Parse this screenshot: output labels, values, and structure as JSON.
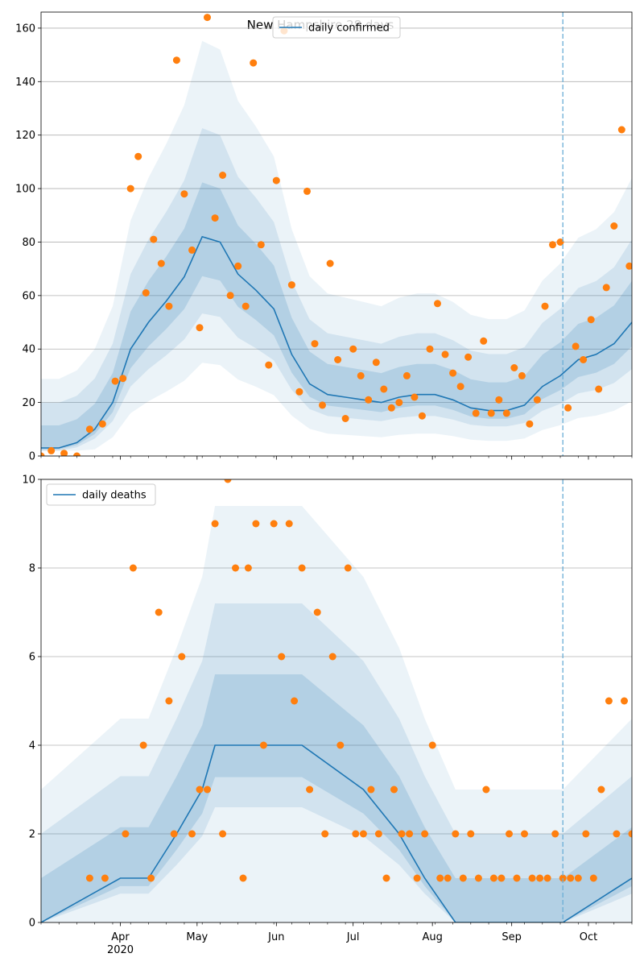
{
  "title": "New Hampshire 28 days",
  "colors": {
    "line": "#1f77b4",
    "points": "#ff7f0e",
    "band": "#1f77b4",
    "grid": "#b0b0b0",
    "vline": "#6baed6"
  },
  "x_ticks": {
    "labels": [
      "Apr",
      "May",
      "Jun",
      "Jul",
      "Aug",
      "Sep",
      "Oct"
    ],
    "year_label": "2020"
  },
  "chart_data": [
    {
      "type": "line",
      "title": "New Hampshire 28 days",
      "legend": "daily confirmed",
      "legend_position": "top-center",
      "grid": "y",
      "xlim": [
        "2020-03-01",
        "2020-10-18"
      ],
      "ylim": [
        0,
        166
      ],
      "yticks": [
        0,
        20,
        40,
        60,
        80,
        100,
        120,
        140,
        160
      ],
      "forecast_start": "2020-09-21",
      "series": [
        {
          "name": "daily confirmed",
          "x": [
            "2020-03-01",
            "2020-03-08",
            "2020-03-15",
            "2020-03-22",
            "2020-03-29",
            "2020-04-05",
            "2020-04-12",
            "2020-04-19",
            "2020-04-26",
            "2020-05-03",
            "2020-05-10",
            "2020-05-17",
            "2020-05-24",
            "2020-05-31",
            "2020-06-07",
            "2020-06-14",
            "2020-06-21",
            "2020-06-28",
            "2020-07-05",
            "2020-07-12",
            "2020-07-19",
            "2020-07-26",
            "2020-08-02",
            "2020-08-09",
            "2020-08-16",
            "2020-08-23",
            "2020-08-30",
            "2020-09-06",
            "2020-09-13",
            "2020-09-20",
            "2020-09-27",
            "2020-10-04",
            "2020-10-11",
            "2020-10-18"
          ],
          "y": [
            3,
            3,
            5,
            10,
            20,
            40,
            50,
            58,
            67,
            82,
            80,
            68,
            62,
            55,
            38,
            27,
            23,
            22,
            21,
            20,
            22,
            23,
            23,
            21,
            18,
            17,
            17,
            19,
            26,
            30,
            36,
            38,
            42,
            50
          ]
        },
        {
          "name": "",
          "kind": "observed points",
          "x": [
            "2020-03-01",
            "2020-03-05",
            "2020-03-10",
            "2020-03-15",
            "2020-03-20",
            "2020-03-25",
            "2020-03-30",
            "2020-04-02",
            "2020-04-05",
            "2020-04-08",
            "2020-04-11",
            "2020-04-14",
            "2020-04-17",
            "2020-04-20",
            "2020-04-23",
            "2020-04-26",
            "2020-04-29",
            "2020-05-02",
            "2020-05-05",
            "2020-05-08",
            "2020-05-11",
            "2020-05-14",
            "2020-05-17",
            "2020-05-20",
            "2020-05-23",
            "2020-05-26",
            "2020-05-29",
            "2020-06-01",
            "2020-06-04",
            "2020-06-07",
            "2020-06-10",
            "2020-06-13",
            "2020-06-16",
            "2020-06-19",
            "2020-06-22",
            "2020-06-25",
            "2020-06-28",
            "2020-07-01",
            "2020-07-04",
            "2020-07-07",
            "2020-07-10",
            "2020-07-13",
            "2020-07-16",
            "2020-07-19",
            "2020-07-22",
            "2020-07-25",
            "2020-07-28",
            "2020-07-31",
            "2020-08-03",
            "2020-08-06",
            "2020-08-09",
            "2020-08-12",
            "2020-08-15",
            "2020-08-18",
            "2020-08-21",
            "2020-08-24",
            "2020-08-27",
            "2020-08-30",
            "2020-09-02",
            "2020-09-05",
            "2020-09-08",
            "2020-09-11",
            "2020-09-14",
            "2020-09-17",
            "2020-09-20",
            "2020-09-23",
            "2020-09-26",
            "2020-09-29",
            "2020-10-02",
            "2020-10-05",
            "2020-10-08",
            "2020-10-11",
            "2020-10-14",
            "2020-10-17"
          ],
          "y": [
            0,
            2,
            1,
            0,
            10,
            12,
            28,
            29,
            100,
            112,
            61,
            81,
            72,
            56,
            148,
            98,
            77,
            48,
            164,
            89,
            105,
            60,
            71,
            56,
            147,
            79,
            34,
            103,
            159,
            64,
            24,
            99,
            42,
            19,
            72,
            36,
            14,
            40,
            30,
            21,
            35,
            25,
            18,
            20,
            30,
            22,
            15,
            40,
            57,
            38,
            31,
            26,
            37,
            16,
            43,
            16,
            21,
            16,
            33,
            30,
            12,
            21,
            56,
            79,
            80,
            18,
            41,
            36,
            51,
            25,
            63,
            86,
            122,
            71
          ]
        }
      ]
    },
    {
      "type": "line",
      "legend": "daily deaths",
      "legend_position": "top-left",
      "grid": "y",
      "xlim": [
        "2020-03-01",
        "2020-10-18"
      ],
      "ylim": [
        0,
        10
      ],
      "yticks": [
        0,
        2,
        4,
        6,
        8,
        10
      ],
      "forecast_start": "2020-09-21",
      "series": [
        {
          "name": "daily deaths",
          "x": [
            "2020-03-01",
            "2020-04-01",
            "2020-04-12",
            "2020-04-23",
            "2020-05-03",
            "2020-05-08",
            "2020-05-16",
            "2020-06-11",
            "2020-07-05",
            "2020-07-19",
            "2020-07-29",
            "2020-08-10",
            "2020-09-21",
            "2020-10-18"
          ],
          "y": [
            0,
            1,
            1,
            2,
            3,
            4,
            4,
            4,
            3,
            2,
            1,
            0,
            0,
            1
          ]
        },
        {
          "name": "",
          "kind": "observed points",
          "x": [
            "2020-03-20",
            "2020-03-26",
            "2020-04-03",
            "2020-04-06",
            "2020-04-10",
            "2020-04-13",
            "2020-04-16",
            "2020-04-20",
            "2020-04-22",
            "2020-04-25",
            "2020-04-29",
            "2020-05-02",
            "2020-05-05",
            "2020-05-08",
            "2020-05-11",
            "2020-05-13",
            "2020-05-16",
            "2020-05-19",
            "2020-05-21",
            "2020-05-24",
            "2020-05-27",
            "2020-05-31",
            "2020-06-03",
            "2020-06-06",
            "2020-06-08",
            "2020-06-11",
            "2020-06-14",
            "2020-06-17",
            "2020-06-20",
            "2020-06-23",
            "2020-06-26",
            "2020-06-29",
            "2020-07-02",
            "2020-07-05",
            "2020-07-08",
            "2020-07-11",
            "2020-07-14",
            "2020-07-17",
            "2020-07-20",
            "2020-07-23",
            "2020-07-26",
            "2020-07-29",
            "2020-08-01",
            "2020-08-04",
            "2020-08-07",
            "2020-08-10",
            "2020-08-13",
            "2020-08-16",
            "2020-08-19",
            "2020-08-22",
            "2020-08-25",
            "2020-08-28",
            "2020-08-31",
            "2020-09-03",
            "2020-09-06",
            "2020-09-09",
            "2020-09-12",
            "2020-09-15",
            "2020-09-18",
            "2020-09-21",
            "2020-09-24",
            "2020-09-27",
            "2020-09-30",
            "2020-10-03",
            "2020-10-06",
            "2020-10-09",
            "2020-10-12",
            "2020-10-15",
            "2020-10-18"
          ],
          "y": [
            1,
            1,
            2,
            8,
            4,
            1,
            7,
            5,
            2,
            6,
            2,
            3,
            3,
            9,
            2,
            10,
            8,
            1,
            8,
            9,
            4,
            9,
            6,
            9,
            5,
            8,
            3,
            7,
            2,
            6,
            4,
            8,
            2,
            2,
            3,
            2,
            1,
            3,
            2,
            2,
            1,
            2,
            4,
            1,
            1,
            2,
            1,
            2,
            1,
            3,
            1,
            1,
            2,
            1,
            2,
            1,
            1,
            1,
            2,
            1,
            1,
            1,
            2,
            1,
            3,
            5,
            2,
            5,
            2
          ]
        }
      ]
    }
  ]
}
